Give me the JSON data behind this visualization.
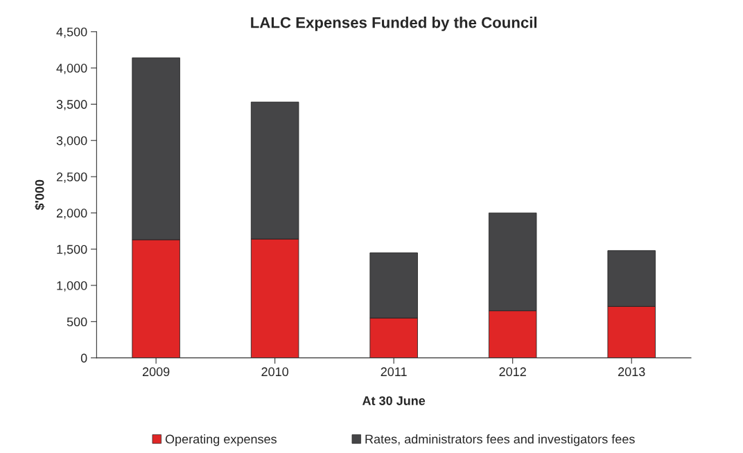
{
  "chart_data": {
    "type": "bar",
    "title": "LALC Expenses Funded by the Council",
    "xlabel": "At 30 June",
    "ylabel": "$'000",
    "categories": [
      "2009",
      "2010",
      "2011",
      "2012",
      "2013"
    ],
    "series": [
      {
        "name": "Operating expenses",
        "color": "#e02626",
        "values": [
          1630,
          1640,
          550,
          650,
          710
        ]
      },
      {
        "name": "Rates, administrators fees and investigators fees",
        "color": "#454547",
        "values": [
          2510,
          1890,
          900,
          1350,
          770
        ]
      }
    ],
    "stacked": true,
    "ylim": [
      0,
      4500
    ],
    "yticks": [
      {
        "value": 0,
        "label": "0"
      },
      {
        "value": 500,
        "label": "500"
      },
      {
        "value": 1000,
        "label": "1,000"
      },
      {
        "value": 1500,
        "label": "1,500"
      },
      {
        "value": 2000,
        "label": "2,000"
      },
      {
        "value": 2500,
        "label": "2,500"
      },
      {
        "value": 3000,
        "label": "3,000"
      },
      {
        "value": 3500,
        "label": "3,500"
      },
      {
        "value": 4000,
        "label": "4,000"
      },
      {
        "value": 4500,
        "label": "4,500"
      }
    ],
    "grid": false,
    "legend": "bottom"
  }
}
